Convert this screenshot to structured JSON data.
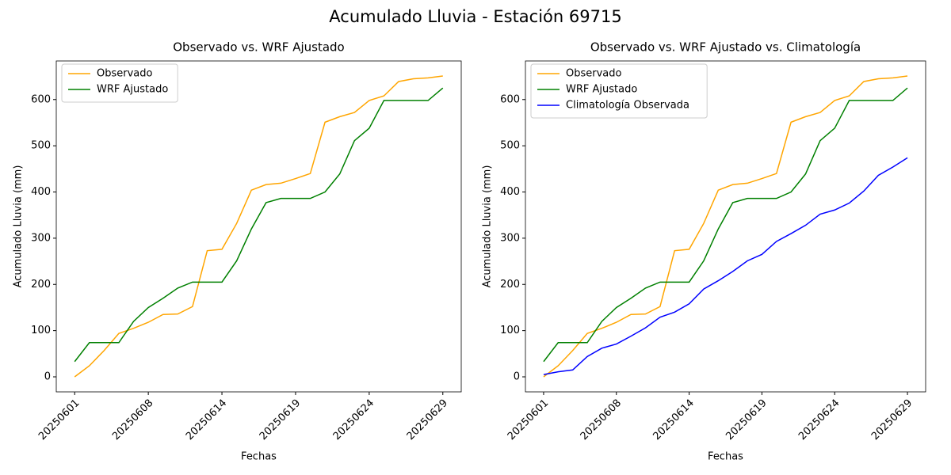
{
  "title": "Acumulado Lluvia - Estación 69715",
  "chart_data": [
    {
      "type": "line",
      "title": "Observado vs. WRF Ajustado",
      "x_label": "Fechas",
      "y_label": "Acumulado Lluvia (mm)",
      "categories": [
        "20250601",
        null,
        null,
        null,
        null,
        "20250608",
        null,
        null,
        null,
        null,
        "20250614",
        null,
        null,
        null,
        null,
        "20250619",
        null,
        null,
        null,
        null,
        "20250624",
        null,
        null,
        null,
        null,
        "20250629"
      ],
      "series": [
        {
          "name": "Observado",
          "color": "orange",
          "values": [
            0,
            24,
            57,
            94,
            105,
            118,
            135,
            136,
            152,
            273,
            276,
            332,
            404,
            416,
            419,
            429,
            440,
            551,
            563,
            572,
            598,
            608,
            639,
            645,
            647,
            651
          ]
        },
        {
          "name": "WRF Ajustado",
          "color": "green",
          "values": [
            33,
            74,
            74,
            74,
            120,
            150,
            170,
            192,
            205,
            205,
            205,
            251,
            320,
            377,
            386,
            386,
            386,
            400,
            439,
            511,
            538,
            598,
            598,
            598,
            598,
            625
          ]
        }
      ],
      "ylim": [
        -32.55,
        683.55
      ],
      "yticks": [
        0,
        100,
        200,
        300,
        400,
        500,
        600
      ],
      "legend": "upper left"
    },
    {
      "type": "line",
      "title": "Observado vs. WRF Ajustado vs. Climatología",
      "x_label": "Fechas",
      "y_label": "Acumulado Lluvia (mm)",
      "categories": [
        "20250601",
        null,
        null,
        null,
        null,
        "20250608",
        null,
        null,
        null,
        null,
        "20250614",
        null,
        null,
        null,
        null,
        "20250619",
        null,
        null,
        null,
        null,
        "20250624",
        null,
        null,
        null,
        null,
        "20250629"
      ],
      "series": [
        {
          "name": "Observado",
          "color": "orange",
          "values": [
            0,
            24,
            57,
            94,
            105,
            118,
            135,
            136,
            152,
            273,
            276,
            332,
            404,
            416,
            419,
            429,
            440,
            551,
            563,
            572,
            598,
            608,
            639,
            645,
            647,
            651
          ]
        },
        {
          "name": "WRF Ajustado",
          "color": "green",
          "values": [
            33,
            74,
            74,
            74,
            120,
            150,
            170,
            192,
            205,
            205,
            205,
            251,
            320,
            377,
            386,
            386,
            386,
            400,
            439,
            511,
            538,
            598,
            598,
            598,
            598,
            625
          ]
        },
        {
          "name": "Climatología Observada",
          "color": "blue",
          "values": [
            5,
            11,
            15,
            44,
            62,
            71,
            88,
            106,
            129,
            140,
            158,
            190,
            208,
            228,
            251,
            265,
            293,
            310,
            328,
            352,
            361,
            376,
            402,
            436,
            454,
            474
          ]
        }
      ],
      "ylim": [
        -32.55,
        683.55
      ],
      "yticks": [
        0,
        100,
        200,
        300,
        400,
        500,
        600
      ],
      "legend": "upper left"
    }
  ]
}
